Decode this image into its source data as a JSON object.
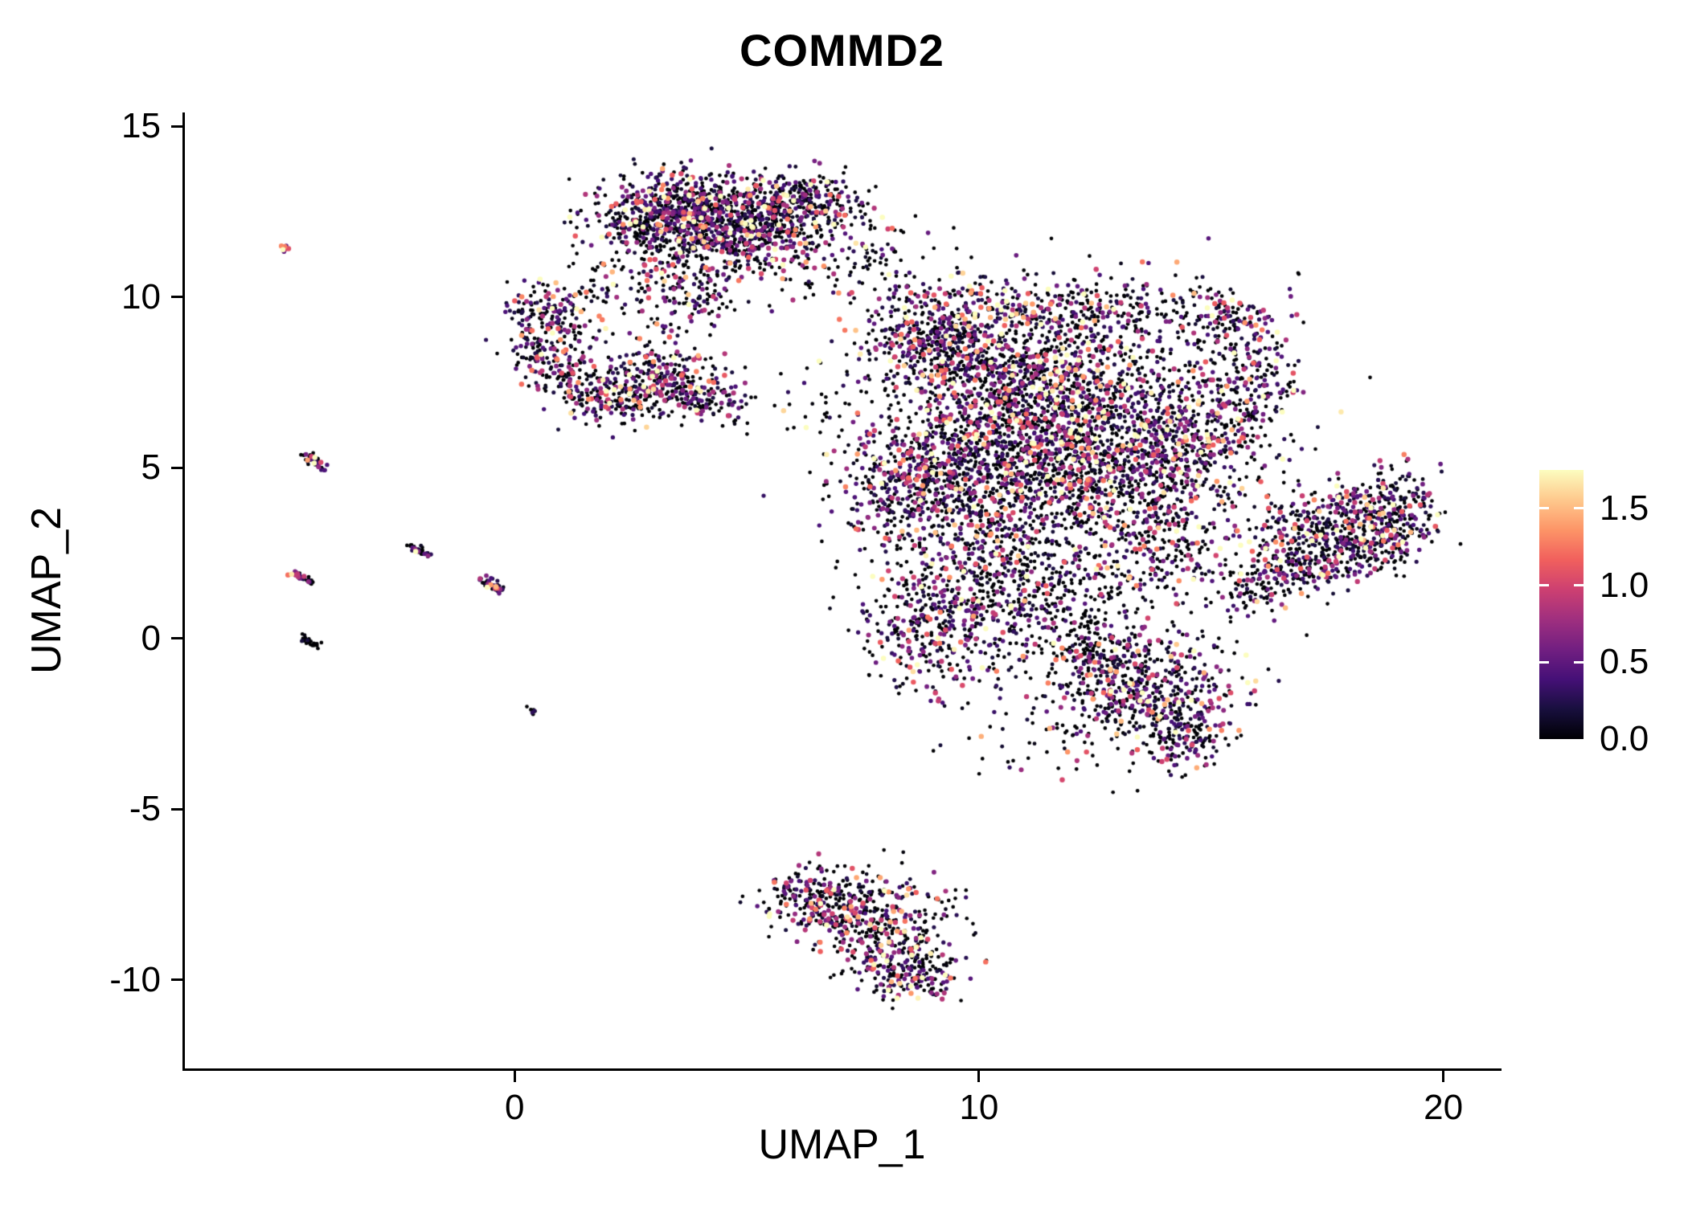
{
  "chart_data": {
    "type": "scatter",
    "title": "COMMD2",
    "xlabel": "UMAP_1",
    "ylabel": "UMAP_2",
    "xlim": [
      -7.1,
      21.2
    ],
    "ylim": [
      -12.6,
      15.4
    ],
    "grid": false,
    "xticks": [
      "0",
      "10",
      "20"
    ],
    "xtick_values": [
      0,
      10,
      20
    ],
    "yticks": [
      "15",
      "10",
      "5",
      "0",
      "-5",
      "-10"
    ],
    "ytick_values": [
      15,
      10,
      5,
      0,
      -5,
      -10
    ],
    "legend_position": "right",
    "colorbar": {
      "ticks": [
        "1.5",
        "1.0",
        "0.5",
        "0.0"
      ],
      "tick_values": [
        1.5,
        1.0,
        0.5,
        0.0
      ],
      "domain": [
        0,
        1.75
      ],
      "colormap": "magma",
      "stops": [
        "#000004",
        "#180f3e",
        "#451077",
        "#721f81",
        "#9f2f7f",
        "#cd4071",
        "#f1605d",
        "#fd9567",
        "#fec98d",
        "#fcfdbf"
      ]
    },
    "point_radius_px": 2.6,
    "seed": 42,
    "expression_default": {
      "frac_zero": 0.42,
      "scale": 0.52,
      "max": 1.75
    },
    "clusters": [
      {
        "kind": "blob",
        "cx": 3.6,
        "cy": 12.6,
        "sx": 0.85,
        "sy": 0.55,
        "n": 520
      },
      {
        "kind": "blob",
        "cx": 5.0,
        "cy": 12.15,
        "sx": 0.9,
        "sy": 0.6,
        "n": 520
      },
      {
        "kind": "blob",
        "cx": 6.3,
        "cy": 12.95,
        "sx": 0.5,
        "sy": 0.4,
        "n": 160
      },
      {
        "kind": "blob",
        "cx": 4.1,
        "cy": 11.3,
        "sx": 1.0,
        "sy": 0.45,
        "n": 160
      },
      {
        "kind": "blob",
        "cx": 3.7,
        "cy": 9.95,
        "sx": 0.55,
        "sy": 0.5,
        "n": 130
      },
      {
        "kind": "blob",
        "cx": 2.6,
        "cy": 11.9,
        "sx": 0.5,
        "sy": 0.5,
        "n": 120
      },
      {
        "kind": "blob",
        "cx": 7.1,
        "cy": 10.9,
        "sx": 1.0,
        "sy": 0.65,
        "n": 70,
        "fz": 0.6
      },
      {
        "kind": "blob",
        "cx": 6.2,
        "cy": 12.0,
        "sx": 0.8,
        "sy": 0.7,
        "n": 90
      },
      {
        "kind": "blob",
        "cx": 2.2,
        "cy": 10.4,
        "sx": 0.35,
        "sy": 0.35,
        "n": 30
      },
      {
        "kind": "blob",
        "cx": 0.85,
        "cy": 9.45,
        "sx": 0.5,
        "sy": 0.45,
        "n": 170
      },
      {
        "kind": "blob",
        "cx": 0.55,
        "cy": 8.35,
        "sx": 0.35,
        "sy": 0.4,
        "n": 80
      },
      {
        "kind": "blob",
        "cx": 1.1,
        "cy": 7.6,
        "sx": 0.4,
        "sy": 0.45,
        "n": 90
      },
      {
        "kind": "blob",
        "cx": 1.6,
        "cy": 7.05,
        "sx": 0.3,
        "sy": 0.25,
        "n": 40
      },
      {
        "kind": "blob",
        "cx": 3.0,
        "cy": 7.5,
        "sx": 0.7,
        "sy": 0.55,
        "n": 330
      },
      {
        "kind": "blob",
        "cx": 4.2,
        "cy": 7.0,
        "sx": 0.45,
        "sy": 0.35,
        "n": 100
      },
      {
        "kind": "blob",
        "cx": 2.4,
        "cy": 6.8,
        "sx": 0.3,
        "sy": 0.3,
        "n": 50
      },
      {
        "kind": "blob",
        "cx": 6.4,
        "cy": 6.7,
        "sx": 0.7,
        "sy": 0.6,
        "n": 22,
        "fz": 0.7
      },
      {
        "kind": "blob",
        "cx": 9.3,
        "cy": 8.8,
        "sx": 1.0,
        "sy": 0.85,
        "n": 600,
        "sc": 0.58
      },
      {
        "kind": "blob",
        "cx": 11.8,
        "cy": 7.3,
        "sx": 1.4,
        "sy": 1.25,
        "n": 1150,
        "sc": 0.58
      },
      {
        "kind": "blob",
        "cx": 9.9,
        "cy": 5.2,
        "sx": 1.2,
        "sy": 1.1,
        "n": 750
      },
      {
        "kind": "blob",
        "cx": 12.9,
        "cy": 4.8,
        "sx": 1.3,
        "sy": 1.1,
        "n": 700
      },
      {
        "kind": "blob",
        "cx": 8.5,
        "cy": 4.4,
        "sx": 0.75,
        "sy": 0.9,
        "n": 300
      },
      {
        "kind": "blob",
        "cx": 10.3,
        "cy": 2.3,
        "sx": 1.1,
        "sy": 1.0,
        "n": 420
      },
      {
        "kind": "blob",
        "cx": 9.2,
        "cy": 0.2,
        "sx": 0.9,
        "sy": 0.95,
        "n": 380
      },
      {
        "kind": "blob",
        "cx": 11.6,
        "cy": 0.9,
        "sx": 1.0,
        "sy": 0.8,
        "n": 160,
        "fz": 0.55
      },
      {
        "kind": "blob",
        "cx": 14.6,
        "cy": 5.7,
        "sx": 0.7,
        "sy": 0.9,
        "n": 260
      },
      {
        "kind": "blob",
        "cx": 15.9,
        "cy": 7.6,
        "sx": 0.55,
        "sy": 1.0,
        "n": 240
      },
      {
        "kind": "blob",
        "cx": 15.3,
        "cy": 9.4,
        "sx": 0.5,
        "sy": 0.4,
        "n": 90
      },
      {
        "kind": "blob",
        "cx": 12.5,
        "cy": 9.8,
        "sx": 1.4,
        "sy": 0.45,
        "n": 200
      },
      {
        "kind": "blob",
        "cx": 11.5,
        "cy": 5.5,
        "sx": 2.4,
        "sy": 2.4,
        "n": 320,
        "fz": 0.6
      },
      {
        "kind": "blob",
        "cx": 13.9,
        "cy": 2.6,
        "sx": 0.8,
        "sy": 0.8,
        "n": 200
      },
      {
        "kind": "blob",
        "cx": 13.6,
        "cy": -1.5,
        "sx": 1.05,
        "sy": 0.85,
        "n": 520
      },
      {
        "kind": "blob",
        "cx": 12.4,
        "cy": -0.4,
        "sx": 0.7,
        "sy": 0.6,
        "n": 140
      },
      {
        "kind": "blob",
        "cx": 14.4,
        "cy": -2.9,
        "sx": 0.5,
        "sy": 0.5,
        "n": 130
      },
      {
        "kind": "streak",
        "x1": 16.0,
        "y1": 1.7,
        "x2": 19.3,
        "y2": 3.1,
        "jitter": 0.45,
        "n": 430
      },
      {
        "kind": "streak",
        "x1": 16.2,
        "y1": 2.9,
        "x2": 19.2,
        "y2": 4.2,
        "jitter": 0.45,
        "n": 330
      },
      {
        "kind": "blob",
        "cx": 19.1,
        "cy": 3.8,
        "sx": 0.45,
        "sy": 0.6,
        "n": 90
      },
      {
        "kind": "blob",
        "cx": 15.8,
        "cy": 1.3,
        "sx": 0.4,
        "sy": 0.4,
        "n": 60
      },
      {
        "kind": "blob",
        "cx": 7.0,
        "cy": -7.8,
        "sx": 0.85,
        "sy": 0.5,
        "n": 300,
        "sc": 0.55
      },
      {
        "kind": "blob",
        "cx": 8.0,
        "cy": -8.9,
        "sx": 0.7,
        "sy": 0.6,
        "n": 260,
        "sc": 0.55
      },
      {
        "kind": "blob",
        "cx": 8.7,
        "cy": -9.9,
        "sx": 0.45,
        "sy": 0.4,
        "n": 130
      },
      {
        "kind": "blob",
        "cx": 6.2,
        "cy": -7.4,
        "sx": 0.4,
        "sy": 0.3,
        "n": 60
      },
      {
        "kind": "blob",
        "cx": 9.3,
        "cy": -7.7,
        "sx": 0.35,
        "sy": 0.3,
        "n": 14,
        "fz": 0.6
      },
      {
        "kind": "streak",
        "x1": -4.55,
        "y1": 5.4,
        "x2": -4.05,
        "y2": 4.95,
        "jitter": 0.06,
        "n": 45
      },
      {
        "kind": "streak",
        "x1": -2.25,
        "y1": 2.7,
        "x2": -1.85,
        "y2": 2.4,
        "jitter": 0.05,
        "n": 35
      },
      {
        "kind": "streak",
        "x1": -4.75,
        "y1": 1.95,
        "x2": -4.35,
        "y2": 1.6,
        "jitter": 0.05,
        "n": 35
      },
      {
        "kind": "streak",
        "x1": -0.7,
        "y1": 1.75,
        "x2": -0.3,
        "y2": 1.35,
        "jitter": 0.06,
        "n": 45,
        "fz": 0.35,
        "sc": 0.65
      },
      {
        "kind": "streak",
        "x1": -4.55,
        "y1": 0.0,
        "x2": -4.25,
        "y2": -0.2,
        "jitter": 0.05,
        "n": 25,
        "fz": 0.88,
        "sc": 0.3
      },
      {
        "kind": "streak",
        "x1": 0.28,
        "y1": -2.0,
        "x2": 0.45,
        "y2": -2.2,
        "jitter": 0.04,
        "n": 9,
        "fz": 0.6
      },
      {
        "kind": "streak",
        "x1": -5.05,
        "y1": 11.5,
        "x2": -4.88,
        "y2": 11.35,
        "jitter": 0.04,
        "n": 8,
        "fz": 0.1,
        "sc": 0.9
      },
      {
        "kind": "blob",
        "cx": 11.8,
        "cy": -2.9,
        "sx": 1.2,
        "sy": 0.6,
        "n": 45,
        "fz": 0.65
      },
      {
        "kind": "blob",
        "cx": 7.9,
        "cy": 11.9,
        "sx": 0.5,
        "sy": 0.6,
        "n": 40
      }
    ]
  }
}
